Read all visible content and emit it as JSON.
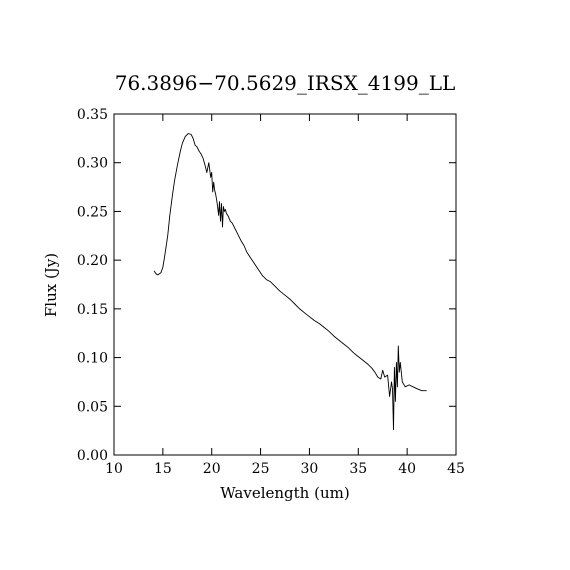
{
  "chart_data": {
    "type": "line",
    "title": "76.3896−70.5629_IRSX_4199_LL",
    "xlabel": "Wavelength (um)",
    "ylabel": "Flux (Jy)",
    "xlim": [
      10,
      45
    ],
    "ylim": [
      0.0,
      0.35
    ],
    "grid": false,
    "xticks": [
      10,
      15,
      20,
      25,
      30,
      35,
      40,
      45
    ],
    "xtick_labels": [
      "10",
      "15",
      "20",
      "25",
      "30",
      "35",
      "40",
      "45"
    ],
    "yticks": [
      0.0,
      0.05,
      0.1,
      0.15,
      0.2,
      0.25,
      0.3,
      0.35
    ],
    "ytick_labels": [
      "0.00",
      "0.05",
      "0.10",
      "0.15",
      "0.20",
      "0.25",
      "0.30",
      "0.35"
    ],
    "series": [
      {
        "x": [
          14.1,
          14.3,
          14.5,
          14.8,
          15.0,
          15.2,
          15.5,
          15.7,
          16.0,
          16.2,
          16.5,
          16.8,
          17.0,
          17.3,
          17.6,
          17.9,
          18.1,
          18.3,
          18.5,
          18.7,
          18.9,
          19.1,
          19.3,
          19.5,
          19.7,
          19.9,
          20.0,
          20.1,
          20.2,
          20.3,
          20.4,
          20.5,
          20.6,
          20.7,
          20.8,
          20.9,
          21.0,
          21.1,
          21.2,
          21.3,
          21.4,
          21.5,
          21.7,
          21.9,
          22.1,
          22.4,
          22.7,
          23.0,
          23.3,
          23.6,
          24.0,
          24.4,
          24.8,
          25.2,
          25.6,
          26.0,
          26.5,
          27.0,
          27.5,
          28.0,
          28.5,
          29.0,
          29.5,
          30.0,
          30.5,
          31.0,
          31.5,
          32.0,
          32.5,
          33.0,
          33.5,
          34.0,
          34.5,
          35.0,
          35.5,
          36.0,
          36.4,
          36.7,
          37.0,
          37.3,
          37.5,
          37.7,
          38.0,
          38.2,
          38.4,
          38.5,
          38.6,
          38.7,
          38.8,
          38.9,
          39.0,
          39.1,
          39.2,
          39.3,
          39.5,
          39.8,
          40.2,
          40.6,
          41.0,
          41.5,
          42.0
        ],
        "values": [
          0.189,
          0.186,
          0.185,
          0.187,
          0.193,
          0.205,
          0.225,
          0.245,
          0.268,
          0.282,
          0.298,
          0.312,
          0.32,
          0.327,
          0.33,
          0.329,
          0.325,
          0.318,
          0.316,
          0.312,
          0.309,
          0.305,
          0.298,
          0.29,
          0.3,
          0.285,
          0.29,
          0.27,
          0.28,
          0.272,
          0.268,
          0.262,
          0.255,
          0.246,
          0.26,
          0.24,
          0.258,
          0.234,
          0.255,
          0.25,
          0.252,
          0.248,
          0.245,
          0.24,
          0.238,
          0.232,
          0.226,
          0.22,
          0.215,
          0.208,
          0.202,
          0.196,
          0.19,
          0.184,
          0.18,
          0.178,
          0.173,
          0.168,
          0.164,
          0.16,
          0.155,
          0.15,
          0.146,
          0.142,
          0.138,
          0.135,
          0.131,
          0.127,
          0.122,
          0.118,
          0.114,
          0.11,
          0.105,
          0.101,
          0.097,
          0.093,
          0.089,
          0.085,
          0.08,
          0.078,
          0.087,
          0.08,
          0.082,
          0.06,
          0.075,
          0.068,
          0.026,
          0.09,
          0.055,
          0.095,
          0.07,
          0.112,
          0.085,
          0.095,
          0.075,
          0.07,
          0.072,
          0.07,
          0.068,
          0.066,
          0.066
        ]
      }
    ]
  }
}
